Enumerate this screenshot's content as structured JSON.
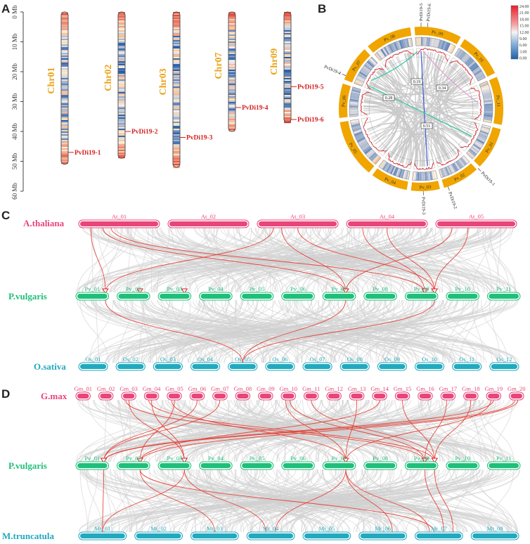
{
  "panels": {
    "a": "A",
    "b": "B",
    "c": "C",
    "d": "D"
  },
  "panel_a": {
    "axis_ticks": [
      "0 Mb",
      "10 Mb",
      "20 Mb",
      "30 Mb",
      "40 Mb",
      "50 Mb",
      "60 Mb"
    ],
    "chromosomes": [
      {
        "name": "Chr01",
        "length_mb": 51,
        "gene": "PvDi19-1",
        "gene_pos_mb": 47
      },
      {
        "name": "Chr02",
        "length_mb": 49,
        "gene": "PvDi19-2",
        "gene_pos_mb": 40
      },
      {
        "name": "Chr03",
        "length_mb": 52,
        "gene": "PvDi19-3",
        "gene_pos_mb": 42
      },
      {
        "name": "Chr07",
        "length_mb": 40,
        "gene": "PvDi19-4",
        "gene_pos_mb": 32
      },
      {
        "name": "Chr09",
        "length_mb": 37,
        "gene": "PvDi19-5",
        "gene_pos_mb": 25,
        "gene2": "PvDi19-6",
        "gene2_pos_mb": 36
      }
    ]
  },
  "panel_b": {
    "legend_values": [
      "24.00",
      "21.00",
      "18.00",
      "15.00",
      "12.00",
      "9.00",
      "6.00",
      "3.00",
      "0.00"
    ],
    "chromosomes": [
      "Pv_09",
      "Pv_10",
      "Pv_11",
      "Pv_01",
      "Pv_02",
      "Pv_03",
      "Pv_04",
      "Pv_05",
      "Pv_06",
      "Pv_07",
      "Pv_08"
    ],
    "genes": [
      "PvDi19-5",
      "PvDi19-6",
      "PvDi19-1",
      "PvDi19-2",
      "PvDi19-3",
      "PvDi19-4"
    ],
    "ka_ks": [
      "0.19",
      "0.34",
      "0.28",
      "0.51"
    ]
  },
  "panel_c": {
    "species_top": "A.thaliana",
    "species_mid": "P.vulgaris",
    "species_bot": "O.sativa",
    "at_chrs": [
      "At_01",
      "At_02",
      "At_03",
      "At_04",
      "At_05"
    ],
    "pv_chrs": [
      "Pv_01",
      "Pv_02",
      "Pv_03",
      "Pv_04",
      "Pv_05",
      "Pv_06",
      "Pv_07",
      "Pv_08",
      "Pv_09",
      "Pv_10",
      "Pv_11"
    ],
    "os_chrs": [
      "Os_01",
      "Os_02",
      "Os_03",
      "Os_04",
      "Os_05",
      "Os_06",
      "Os_07",
      "Os_08",
      "Os_09",
      "Os_10",
      "Os_11",
      "Os_12"
    ]
  },
  "panel_d": {
    "species_top": "G.max",
    "species_mid": "P.vulgaris",
    "species_bot": "M.truncatula",
    "gm_chrs": [
      "Gm_01",
      "Gm_02",
      "Gm_03",
      "Gm_04",
      "Gm_05",
      "Gm_06",
      "Gm_07",
      "Gm_08",
      "Gm_09",
      "Gm_10",
      "Gm_11",
      "Gm_12",
      "Gm_13",
      "Gm_14",
      "Gm_15",
      "Gm_16",
      "Gm_17",
      "Gm_18",
      "Gm_19",
      "Gm_20"
    ],
    "pv_chrs": [
      "Pv_01",
      "Pv_02",
      "Pv_03",
      "Pv_04",
      "Pv_05",
      "Pv_06",
      "Pv_07",
      "Pv_08",
      "Pv_09",
      "Pv_10",
      "Pv_11"
    ],
    "mt_chrs": [
      "Mt_01",
      "Mt_02",
      "Mt_03",
      "Mt_04",
      "Mt_05",
      "Mt_06",
      "Mt_07",
      "Mt_08"
    ]
  },
  "colors": {
    "gene_red": "#d42020",
    "at_pink": "#e8467a",
    "pv_green": "#1fbf7a",
    "os_teal": "#22a9bf",
    "chr_orange": "#f0a500",
    "link_gray": "#c8c8c8"
  }
}
